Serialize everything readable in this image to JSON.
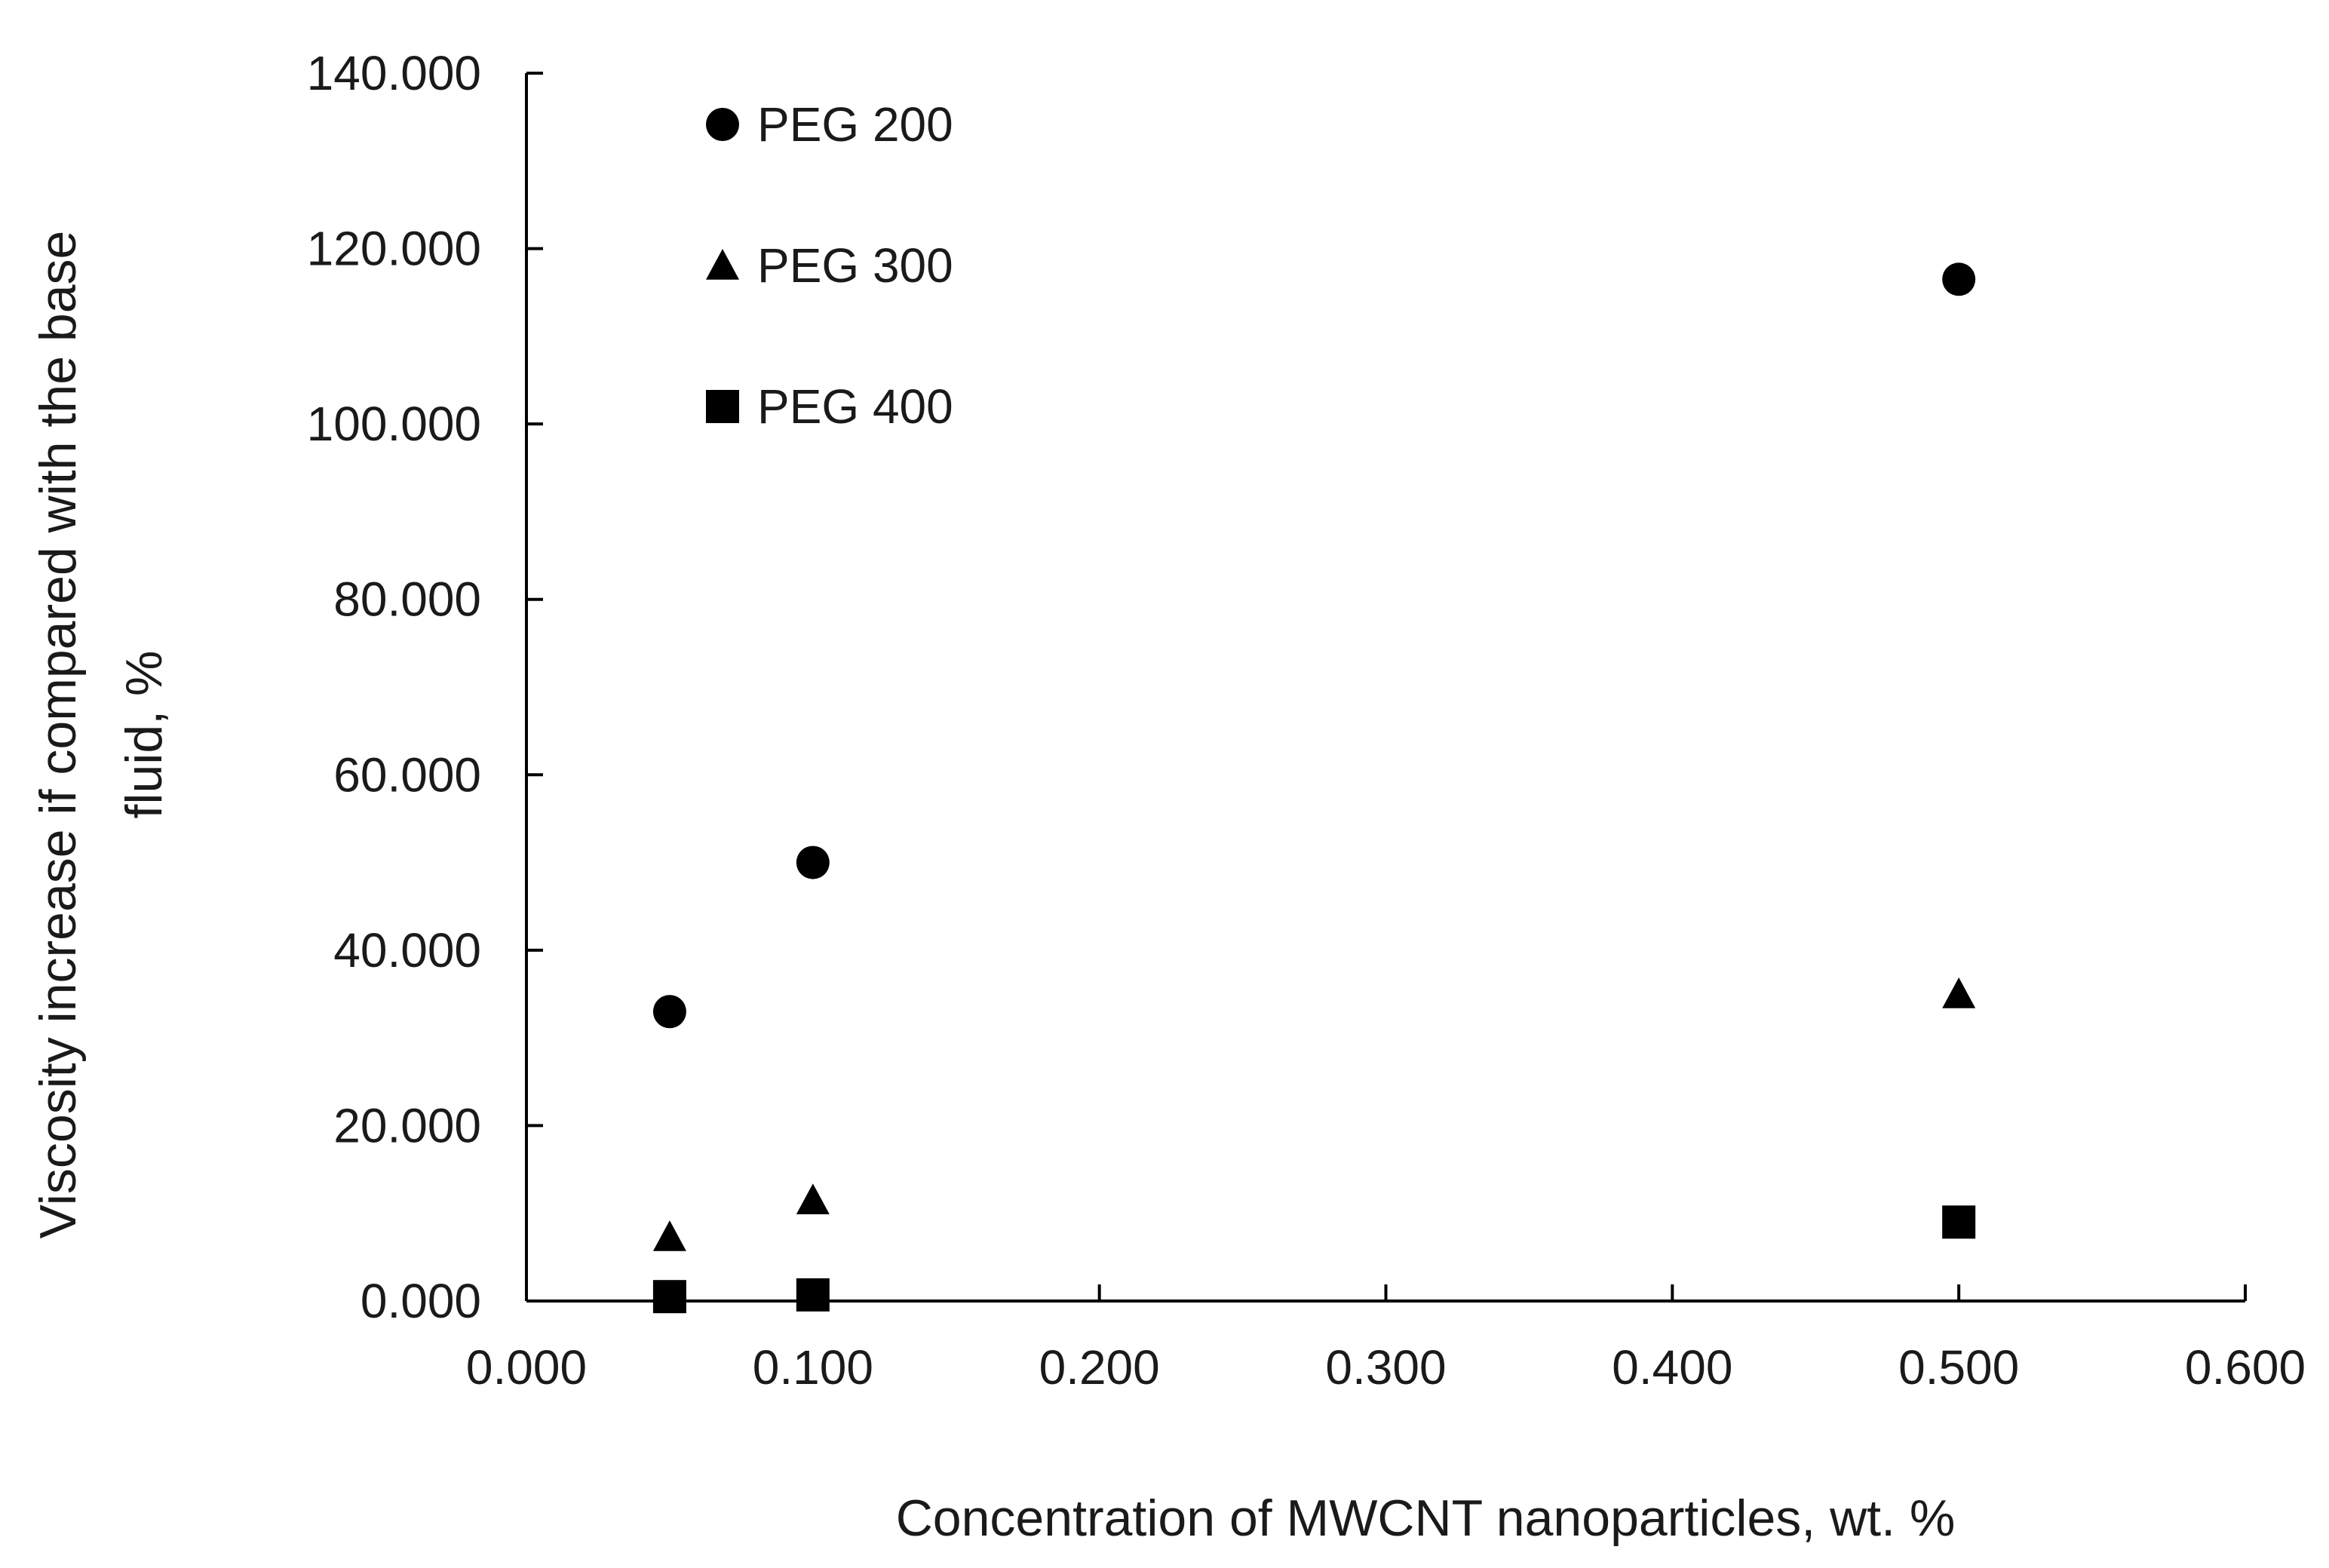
{
  "chart_data": {
    "type": "scatter",
    "title": "",
    "xlabel": "Concentration of MWCNT nanoparticles, wt. %",
    "ylabel_lines": [
      "Viscosity increase if compared with the base",
      "fluid, %"
    ],
    "xlim": [
      0,
      0.6
    ],
    "ylim": [
      0,
      140
    ],
    "x_ticks": [
      "0.000",
      "0.100",
      "0.200",
      "0.300",
      "0.400",
      "0.500",
      "0.600"
    ],
    "x_tick_values": [
      0,
      0.1,
      0.2,
      0.3,
      0.4,
      0.5,
      0.6
    ],
    "y_ticks": [
      "0.000",
      "20.000",
      "40.000",
      "60.000",
      "80.000",
      "100.000",
      "120.000",
      "140.000"
    ],
    "y_tick_values": [
      0,
      20,
      40,
      60,
      80,
      100,
      120,
      140
    ],
    "grid": false,
    "legend_position": "top-left",
    "series": [
      {
        "name": "PEG 200",
        "marker": "circle",
        "x": [
          0.05,
          0.1,
          0.5
        ],
        "y": [
          33.0,
          50.0,
          116.5
        ]
      },
      {
        "name": "PEG 300",
        "marker": "triangle",
        "x": [
          0.05,
          0.1,
          0.5
        ],
        "y": [
          7.3,
          11.5,
          35.0
        ]
      },
      {
        "name": "PEG 400",
        "marker": "square",
        "x": [
          0.05,
          0.1,
          0.5
        ],
        "y": [
          0.5,
          0.7,
          9.0
        ]
      }
    ],
    "marker_color": "#000000"
  }
}
